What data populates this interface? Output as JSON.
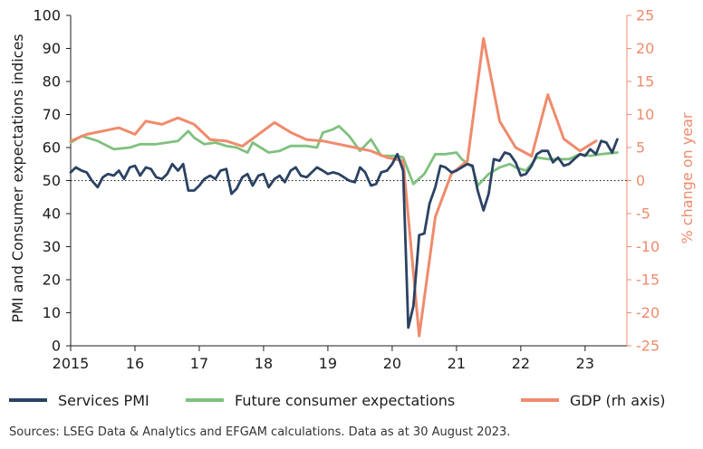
{
  "chart_data": {
    "type": "line",
    "x_range": [
      2015.0,
      2023.65
    ],
    "left_axis": {
      "label": "PMI and Consumer expectations indices",
      "ylim": [
        0,
        100
      ],
      "ticks": [
        "0",
        "10",
        "20",
        "30",
        "40",
        "50",
        "60",
        "70",
        "80",
        "90",
        "100"
      ],
      "reference_line": 50
    },
    "right_axis": {
      "label": "% change on year",
      "ylim": [
        -25,
        25
      ],
      "ticks": [
        "-25",
        "-20",
        "-15",
        "-10",
        "-5",
        "0",
        "5",
        "10",
        "15",
        "20",
        "25"
      ]
    },
    "x_ticks": [
      {
        "value": 2015,
        "label": "2015"
      },
      {
        "value": 2016,
        "label": "16"
      },
      {
        "value": 2017,
        "label": "17"
      },
      {
        "value": 2018,
        "label": "18"
      },
      {
        "value": 2019,
        "label": "19"
      },
      {
        "value": 2020,
        "label": "20"
      },
      {
        "value": 2021,
        "label": "21"
      },
      {
        "value": 2022,
        "label": "22"
      },
      {
        "value": 2023,
        "label": "23"
      }
    ],
    "series": [
      {
        "name": "Services PMI",
        "axis": "left",
        "color": "#2b4263",
        "points": [
          [
            2015.0,
            52.5
          ],
          [
            2015.08,
            54
          ],
          [
            2015.17,
            53
          ],
          [
            2015.25,
            52.5
          ],
          [
            2015.33,
            50
          ],
          [
            2015.42,
            48
          ],
          [
            2015.5,
            51
          ],
          [
            2015.58,
            52
          ],
          [
            2015.67,
            51.5
          ],
          [
            2015.75,
            53
          ],
          [
            2015.83,
            50.5
          ],
          [
            2015.92,
            54
          ],
          [
            2016.0,
            54.5
          ],
          [
            2016.08,
            51.5
          ],
          [
            2016.17,
            54
          ],
          [
            2016.25,
            53.5
          ],
          [
            2016.33,
            51
          ],
          [
            2016.42,
            50.5
          ],
          [
            2016.5,
            52
          ],
          [
            2016.58,
            55
          ],
          [
            2016.67,
            53
          ],
          [
            2016.75,
            55
          ],
          [
            2016.83,
            47
          ],
          [
            2016.92,
            47
          ],
          [
            2017.0,
            48.5
          ],
          [
            2017.08,
            50.5
          ],
          [
            2017.17,
            51.5
          ],
          [
            2017.25,
            50.5
          ],
          [
            2017.33,
            53
          ],
          [
            2017.42,
            53.5
          ],
          [
            2017.5,
            46
          ],
          [
            2017.58,
            47.5
          ],
          [
            2017.67,
            51
          ],
          [
            2017.75,
            52
          ],
          [
            2017.83,
            48.5
          ],
          [
            2017.92,
            51.5
          ],
          [
            2018.0,
            52
          ],
          [
            2018.08,
            48
          ],
          [
            2018.17,
            50.5
          ],
          [
            2018.25,
            51.5
          ],
          [
            2018.33,
            49.5
          ],
          [
            2018.42,
            53
          ],
          [
            2018.5,
            54
          ],
          [
            2018.58,
            51.5
          ],
          [
            2018.67,
            51
          ],
          [
            2018.75,
            52.5
          ],
          [
            2018.83,
            54
          ],
          [
            2018.92,
            53
          ],
          [
            2019.0,
            52
          ],
          [
            2019.08,
            52.5
          ],
          [
            2019.17,
            52
          ],
          [
            2019.25,
            51
          ],
          [
            2019.33,
            50
          ],
          [
            2019.42,
            49.5
          ],
          [
            2019.5,
            54
          ],
          [
            2019.58,
            52.5
          ],
          [
            2019.67,
            48.5
          ],
          [
            2019.75,
            49
          ],
          [
            2019.83,
            52.5
          ],
          [
            2019.92,
            53
          ],
          [
            2020.0,
            55
          ],
          [
            2020.08,
            58
          ],
          [
            2020.17,
            53
          ],
          [
            2020.25,
            5.5
          ],
          [
            2020.33,
            12
          ],
          [
            2020.42,
            33.5
          ],
          [
            2020.5,
            34
          ],
          [
            2020.58,
            43
          ],
          [
            2020.67,
            48
          ],
          [
            2020.75,
            54.5
          ],
          [
            2020.83,
            54
          ],
          [
            2020.92,
            52.5
          ],
          [
            2021.0,
            53
          ],
          [
            2021.08,
            54
          ],
          [
            2021.17,
            55
          ],
          [
            2021.25,
            54.5
          ],
          [
            2021.33,
            47
          ],
          [
            2021.42,
            41
          ],
          [
            2021.5,
            46
          ],
          [
            2021.58,
            56.5
          ],
          [
            2021.67,
            56
          ],
          [
            2021.75,
            58.5
          ],
          [
            2021.83,
            58
          ],
          [
            2021.92,
            55.5
          ],
          [
            2022.0,
            51.5
          ],
          [
            2022.08,
            52
          ],
          [
            2022.17,
            54.5
          ],
          [
            2022.25,
            58
          ],
          [
            2022.33,
            59
          ],
          [
            2022.42,
            59
          ],
          [
            2022.5,
            55.5
          ],
          [
            2022.58,
            57
          ],
          [
            2022.67,
            54.5
          ],
          [
            2022.75,
            55
          ],
          [
            2022.83,
            56.5
          ],
          [
            2022.92,
            58
          ],
          [
            2023.0,
            57.5
          ],
          [
            2023.08,
            59.5
          ],
          [
            2023.17,
            58
          ],
          [
            2023.25,
            62
          ],
          [
            2023.33,
            61.5
          ],
          [
            2023.42,
            58.5
          ],
          [
            2023.5,
            62.5
          ]
        ]
      },
      {
        "name": "Future consumer expectations",
        "axis": "left",
        "color": "#7fc17f",
        "points": [
          [
            2015.0,
            61.5
          ],
          [
            2015.17,
            63.5
          ],
          [
            2015.42,
            62
          ],
          [
            2015.67,
            59.5
          ],
          [
            2015.92,
            60
          ],
          [
            2016.08,
            61
          ],
          [
            2016.33,
            61
          ],
          [
            2016.5,
            61.5
          ],
          [
            2016.67,
            62
          ],
          [
            2016.83,
            65
          ],
          [
            2016.92,
            63
          ],
          [
            2017.08,
            61
          ],
          [
            2017.25,
            61.5
          ],
          [
            2017.42,
            60.5
          ],
          [
            2017.58,
            60
          ],
          [
            2017.75,
            58.5
          ],
          [
            2017.83,
            61.5
          ],
          [
            2018.08,
            58.5
          ],
          [
            2018.25,
            59
          ],
          [
            2018.42,
            60.5
          ],
          [
            2018.67,
            60.5
          ],
          [
            2018.83,
            60
          ],
          [
            2018.92,
            64.5
          ],
          [
            2019.08,
            65.5
          ],
          [
            2019.17,
            66.5
          ],
          [
            2019.33,
            63.5
          ],
          [
            2019.5,
            59
          ],
          [
            2019.67,
            62.5
          ],
          [
            2019.83,
            57.5
          ],
          [
            2020.08,
            57.5
          ],
          [
            2020.17,
            57
          ],
          [
            2020.33,
            49
          ],
          [
            2020.5,
            52
          ],
          [
            2020.67,
            58
          ],
          [
            2020.83,
            58
          ],
          [
            2021.0,
            58.5
          ],
          [
            2021.08,
            56.5
          ],
          [
            2021.25,
            54
          ],
          [
            2021.33,
            48.5
          ],
          [
            2021.5,
            52
          ],
          [
            2021.67,
            54
          ],
          [
            2021.83,
            55
          ],
          [
            2021.92,
            54
          ],
          [
            2022.08,
            53
          ],
          [
            2022.25,
            57
          ],
          [
            2022.42,
            56.5
          ],
          [
            2022.58,
            56.5
          ],
          [
            2022.75,
            56.5
          ],
          [
            2022.92,
            58
          ],
          [
            2023.08,
            57.5
          ],
          [
            2023.25,
            58
          ],
          [
            2023.5,
            58.5
          ]
        ]
      },
      {
        "name": "GDP (rh axis)",
        "axis": "right",
        "color": "#ef8b6c",
        "points": [
          [
            2015.0,
            6
          ],
          [
            2015.25,
            7
          ],
          [
            2015.5,
            7.5
          ],
          [
            2015.75,
            8
          ],
          [
            2016.0,
            7
          ],
          [
            2016.17,
            9
          ],
          [
            2016.42,
            8.5
          ],
          [
            2016.67,
            9.5
          ],
          [
            2016.92,
            8.5
          ],
          [
            2017.17,
            6.2
          ],
          [
            2017.42,
            6
          ],
          [
            2017.67,
            5.2
          ],
          [
            2017.92,
            7
          ],
          [
            2018.17,
            8.8
          ],
          [
            2018.42,
            7.3
          ],
          [
            2018.67,
            6.2
          ],
          [
            2018.92,
            6
          ],
          [
            2019.17,
            5.5
          ],
          [
            2019.42,
            5
          ],
          [
            2019.67,
            4.5
          ],
          [
            2019.92,
            3.5
          ],
          [
            2020.17,
            3
          ],
          [
            2020.42,
            -23.5
          ],
          [
            2020.67,
            -5.5
          ],
          [
            2020.92,
            1
          ],
          [
            2021.17,
            3
          ],
          [
            2021.42,
            21.5
          ],
          [
            2021.67,
            9
          ],
          [
            2021.92,
            5
          ],
          [
            2022.17,
            3.7
          ],
          [
            2022.42,
            13
          ],
          [
            2022.67,
            6.3
          ],
          [
            2022.92,
            4.5
          ],
          [
            2023.17,
            6
          ]
        ]
      }
    ],
    "legend": [
      "Services PMI",
      "Future consumer expectations",
      "GDP (rh axis)"
    ]
  },
  "legend": {
    "items": [
      {
        "label": "Services PMI",
        "color": "#2b4263"
      },
      {
        "label": "Future consumer expectations",
        "color": "#7fc17f"
      },
      {
        "label": "GDP (rh axis)",
        "color": "#ef8b6c"
      }
    ]
  },
  "source": "Sources: LSEG Data & Analytics and EFGAM calculations. Data as at 30 August 2023."
}
